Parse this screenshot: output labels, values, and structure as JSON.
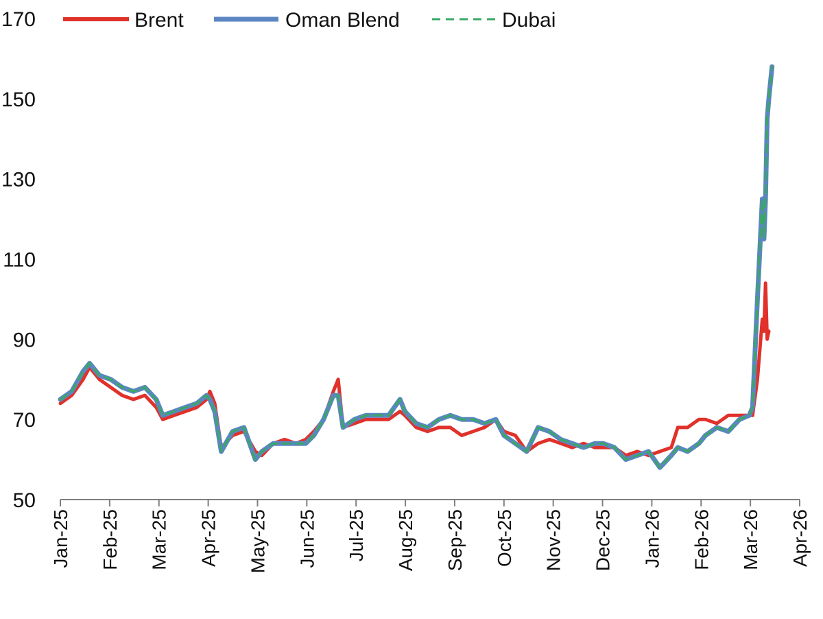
{
  "chart_data": {
    "type": "line",
    "title": "",
    "xlabel": "",
    "ylabel": "",
    "ylim": [
      50,
      170
    ],
    "y_ticks": [
      50,
      70,
      90,
      110,
      130,
      150,
      170
    ],
    "x_ticks": [
      "Jan-25",
      "Feb-25",
      "Mar-25",
      "Apr-25",
      "May-25",
      "Jun-25",
      "Jul-25",
      "Aug-25",
      "Sep-25",
      "Oct-25",
      "Nov-25",
      "Dec-25",
      "Jan-26",
      "Feb-26",
      "Mar-26",
      "Apr-26"
    ],
    "xlim": [
      "2025-01-01",
      "2026-04-01"
    ],
    "grid": false,
    "legend_position": "top",
    "series": [
      {
        "name": "Brent",
        "color": "#e0312a",
        "style": "solid",
        "points": [
          [
            "2025-01-01",
            74
          ],
          [
            "2025-01-08",
            76
          ],
          [
            "2025-01-15",
            80
          ],
          [
            "2025-01-19",
            83
          ],
          [
            "2025-01-25",
            80
          ],
          [
            "2025-02-01",
            78
          ],
          [
            "2025-02-08",
            76
          ],
          [
            "2025-02-15",
            75
          ],
          [
            "2025-02-22",
            76
          ],
          [
            "2025-03-01",
            73
          ],
          [
            "2025-03-05",
            70
          ],
          [
            "2025-03-12",
            71
          ],
          [
            "2025-03-19",
            72
          ],
          [
            "2025-03-26",
            73
          ],
          [
            "2025-04-01",
            75
          ],
          [
            "2025-04-03",
            77
          ],
          [
            "2025-04-06",
            74
          ],
          [
            "2025-04-10",
            63
          ],
          [
            "2025-04-17",
            66
          ],
          [
            "2025-04-24",
            67
          ],
          [
            "2025-05-01",
            62
          ],
          [
            "2025-05-05",
            61
          ],
          [
            "2025-05-12",
            64
          ],
          [
            "2025-05-19",
            65
          ],
          [
            "2025-05-26",
            64
          ],
          [
            "2025-06-01",
            65
          ],
          [
            "2025-06-06",
            67
          ],
          [
            "2025-06-12",
            70
          ],
          [
            "2025-06-18",
            77
          ],
          [
            "2025-06-21",
            80
          ],
          [
            "2025-06-24",
            68
          ],
          [
            "2025-07-01",
            69
          ],
          [
            "2025-07-08",
            70
          ],
          [
            "2025-07-15",
            70
          ],
          [
            "2025-07-22",
            70
          ],
          [
            "2025-07-29",
            72
          ],
          [
            "2025-08-01",
            71
          ],
          [
            "2025-08-08",
            68
          ],
          [
            "2025-08-15",
            67
          ],
          [
            "2025-08-22",
            68
          ],
          [
            "2025-08-29",
            68
          ],
          [
            "2025-09-05",
            66
          ],
          [
            "2025-09-12",
            67
          ],
          [
            "2025-09-19",
            68
          ],
          [
            "2025-09-26",
            70
          ],
          [
            "2025-10-01",
            67
          ],
          [
            "2025-10-08",
            66
          ],
          [
            "2025-10-15",
            62
          ],
          [
            "2025-10-22",
            64
          ],
          [
            "2025-10-29",
            65
          ],
          [
            "2025-11-05",
            64
          ],
          [
            "2025-11-12",
            63
          ],
          [
            "2025-11-19",
            64
          ],
          [
            "2025-11-26",
            63
          ],
          [
            "2025-12-01",
            63
          ],
          [
            "2025-12-08",
            63
          ],
          [
            "2025-12-15",
            61
          ],
          [
            "2025-12-22",
            62
          ],
          [
            "2025-12-29",
            61
          ],
          [
            "2026-01-05",
            62
          ],
          [
            "2026-01-12",
            63
          ],
          [
            "2026-01-16",
            68
          ],
          [
            "2026-01-22",
            68
          ],
          [
            "2026-01-29",
            70
          ],
          [
            "2026-02-02",
            70
          ],
          [
            "2026-02-09",
            69
          ],
          [
            "2026-02-16",
            71
          ],
          [
            "2026-02-23",
            71
          ],
          [
            "2026-03-01",
            71
          ],
          [
            "2026-03-03",
            71
          ],
          [
            "2026-03-06",
            80
          ],
          [
            "2026-03-09",
            95
          ],
          [
            "2026-03-10",
            92
          ],
          [
            "2026-03-11",
            104
          ],
          [
            "2026-03-12",
            90
          ],
          [
            "2026-03-13",
            92
          ]
        ]
      },
      {
        "name": "Oman Blend",
        "color": "#5b86c2",
        "style": "solid",
        "points": [
          [
            "2025-01-01",
            75
          ],
          [
            "2025-01-08",
            77
          ],
          [
            "2025-01-15",
            82
          ],
          [
            "2025-01-19",
            84
          ],
          [
            "2025-01-25",
            81
          ],
          [
            "2025-02-01",
            80
          ],
          [
            "2025-02-08",
            78
          ],
          [
            "2025-02-15",
            77
          ],
          [
            "2025-02-22",
            78
          ],
          [
            "2025-03-01",
            75
          ],
          [
            "2025-03-05",
            71
          ],
          [
            "2025-03-12",
            72
          ],
          [
            "2025-03-19",
            73
          ],
          [
            "2025-03-26",
            74
          ],
          [
            "2025-04-01",
            76
          ],
          [
            "2025-04-03",
            75
          ],
          [
            "2025-04-06",
            72
          ],
          [
            "2025-04-10",
            62
          ],
          [
            "2025-04-17",
            67
          ],
          [
            "2025-04-24",
            68
          ],
          [
            "2025-05-01",
            60
          ],
          [
            "2025-05-05",
            62
          ],
          [
            "2025-05-12",
            64
          ],
          [
            "2025-05-19",
            64
          ],
          [
            "2025-05-26",
            64
          ],
          [
            "2025-06-01",
            64
          ],
          [
            "2025-06-06",
            66
          ],
          [
            "2025-06-12",
            70
          ],
          [
            "2025-06-18",
            76
          ],
          [
            "2025-06-21",
            76
          ],
          [
            "2025-06-24",
            68
          ],
          [
            "2025-07-01",
            70
          ],
          [
            "2025-07-08",
            71
          ],
          [
            "2025-07-15",
            71
          ],
          [
            "2025-07-22",
            71
          ],
          [
            "2025-07-29",
            75
          ],
          [
            "2025-08-01",
            72
          ],
          [
            "2025-08-08",
            69
          ],
          [
            "2025-08-15",
            68
          ],
          [
            "2025-08-22",
            70
          ],
          [
            "2025-08-29",
            71
          ],
          [
            "2025-09-05",
            70
          ],
          [
            "2025-09-12",
            70
          ],
          [
            "2025-09-19",
            69
          ],
          [
            "2025-09-26",
            70
          ],
          [
            "2025-10-01",
            66
          ],
          [
            "2025-10-08",
            64
          ],
          [
            "2025-10-15",
            62
          ],
          [
            "2025-10-22",
            68
          ],
          [
            "2025-10-29",
            67
          ],
          [
            "2025-11-05",
            65
          ],
          [
            "2025-11-12",
            64
          ],
          [
            "2025-11-19",
            63
          ],
          [
            "2025-11-26",
            64
          ],
          [
            "2025-12-01",
            64
          ],
          [
            "2025-12-08",
            63
          ],
          [
            "2025-12-15",
            60
          ],
          [
            "2025-12-22",
            61
          ],
          [
            "2025-12-29",
            62
          ],
          [
            "2026-01-05",
            58
          ],
          [
            "2026-01-12",
            61
          ],
          [
            "2026-01-16",
            63
          ],
          [
            "2026-01-22",
            62
          ],
          [
            "2026-01-29",
            64
          ],
          [
            "2026-02-02",
            66
          ],
          [
            "2026-02-09",
            68
          ],
          [
            "2026-02-16",
            67
          ],
          [
            "2026-02-23",
            70
          ],
          [
            "2026-03-01",
            71
          ],
          [
            "2026-03-03",
            73
          ],
          [
            "2026-03-06",
            100
          ],
          [
            "2026-03-09",
            125
          ],
          [
            "2026-03-10",
            115
          ],
          [
            "2026-03-11",
            125
          ],
          [
            "2026-03-12",
            145
          ],
          [
            "2026-03-13",
            150
          ],
          [
            "2026-03-15",
            158
          ]
        ]
      },
      {
        "name": "Dubai",
        "color": "#3aa864",
        "style": "dashed",
        "points": [
          [
            "2025-01-01",
            75
          ],
          [
            "2025-01-08",
            77
          ],
          [
            "2025-01-15",
            82
          ],
          [
            "2025-01-19",
            84
          ],
          [
            "2025-01-25",
            81
          ],
          [
            "2025-02-01",
            80
          ],
          [
            "2025-02-08",
            78
          ],
          [
            "2025-02-15",
            77
          ],
          [
            "2025-02-22",
            78
          ],
          [
            "2025-03-01",
            75
          ],
          [
            "2025-03-05",
            71
          ],
          [
            "2025-03-12",
            72
          ],
          [
            "2025-03-19",
            73
          ],
          [
            "2025-03-26",
            74
          ],
          [
            "2025-04-01",
            76
          ],
          [
            "2025-04-03",
            75
          ],
          [
            "2025-04-06",
            72
          ],
          [
            "2025-04-10",
            62
          ],
          [
            "2025-04-17",
            67
          ],
          [
            "2025-04-24",
            68
          ],
          [
            "2025-05-01",
            60
          ],
          [
            "2025-05-05",
            62
          ],
          [
            "2025-05-12",
            64
          ],
          [
            "2025-05-19",
            64
          ],
          [
            "2025-05-26",
            64
          ],
          [
            "2025-06-01",
            64
          ],
          [
            "2025-06-06",
            66
          ],
          [
            "2025-06-12",
            70
          ],
          [
            "2025-06-18",
            76
          ],
          [
            "2025-06-21",
            76
          ],
          [
            "2025-06-24",
            68
          ],
          [
            "2025-07-01",
            70
          ],
          [
            "2025-07-08",
            71
          ],
          [
            "2025-07-15",
            71
          ],
          [
            "2025-07-22",
            71
          ],
          [
            "2025-07-29",
            75
          ],
          [
            "2025-08-01",
            72
          ],
          [
            "2025-08-08",
            69
          ],
          [
            "2025-08-15",
            68
          ],
          [
            "2025-08-22",
            70
          ],
          [
            "2025-08-29",
            71
          ],
          [
            "2025-09-05",
            70
          ],
          [
            "2025-09-12",
            70
          ],
          [
            "2025-09-19",
            69
          ],
          [
            "2025-09-26",
            70
          ],
          [
            "2025-10-01",
            66
          ],
          [
            "2025-10-08",
            64
          ],
          [
            "2025-10-15",
            62
          ],
          [
            "2025-10-22",
            68
          ],
          [
            "2025-10-29",
            67
          ],
          [
            "2025-11-05",
            65
          ],
          [
            "2025-11-12",
            64
          ],
          [
            "2025-11-19",
            63
          ],
          [
            "2025-11-26",
            64
          ],
          [
            "2025-12-01",
            64
          ],
          [
            "2025-12-08",
            63
          ],
          [
            "2025-12-15",
            60
          ],
          [
            "2025-12-22",
            61
          ],
          [
            "2025-12-29",
            62
          ],
          [
            "2026-01-05",
            58
          ],
          [
            "2026-01-12",
            61
          ],
          [
            "2026-01-16",
            63
          ],
          [
            "2026-01-22",
            62
          ],
          [
            "2026-01-29",
            64
          ],
          [
            "2026-02-02",
            66
          ],
          [
            "2026-02-09",
            68
          ],
          [
            "2026-02-16",
            67
          ],
          [
            "2026-02-23",
            70
          ],
          [
            "2026-03-01",
            71
          ],
          [
            "2026-03-03",
            73
          ],
          [
            "2026-03-06",
            100
          ],
          [
            "2026-03-09",
            125
          ],
          [
            "2026-03-10",
            115
          ],
          [
            "2026-03-11",
            125
          ],
          [
            "2026-03-12",
            145
          ],
          [
            "2026-03-13",
            150
          ],
          [
            "2026-03-15",
            158
          ]
        ]
      }
    ]
  }
}
